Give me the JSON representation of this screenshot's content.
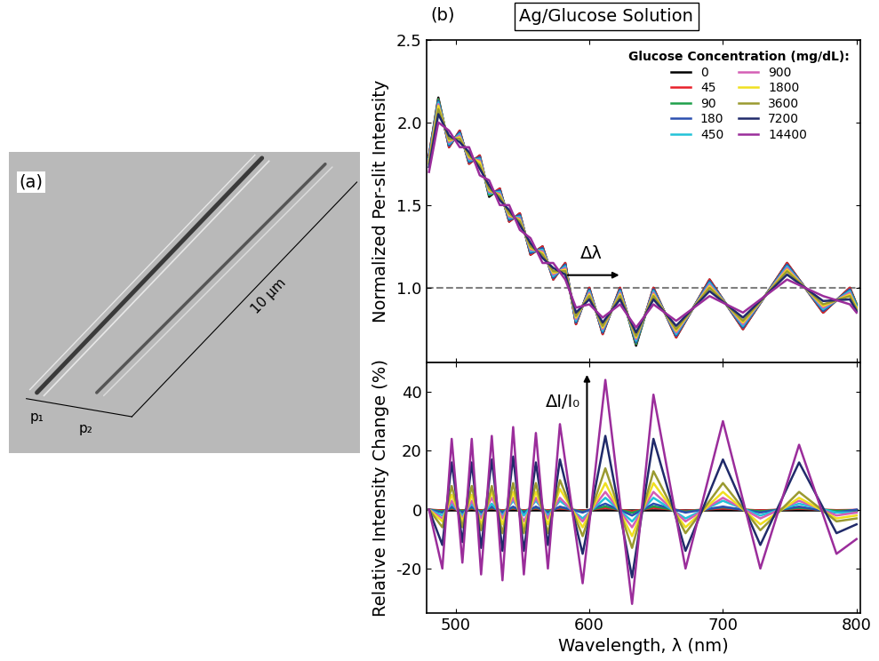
{
  "image_panel": {
    "label": "(a)",
    "annotations": {
      "p1": "p₁",
      "p2": "p₂",
      "length": "10 µm"
    }
  },
  "chart_data": [
    {
      "type": "line",
      "panel_label": "(b)",
      "title": "Ag/Glucose Solution",
      "ylabel": "Normalized Per-slit Intensity",
      "x": [
        480,
        487,
        495,
        503,
        510,
        518,
        525,
        533,
        540,
        548,
        556,
        565,
        573,
        582,
        590,
        600,
        610,
        623,
        635,
        648,
        665,
        690,
        715,
        748,
        775,
        795,
        800
      ],
      "xlim": [
        478,
        803
      ],
      "xticks": [
        500,
        600,
        700,
        800
      ],
      "ylim": [
        0.55,
        2.5
      ],
      "yticks": [
        {
          "value": 1,
          "label": "1.0"
        },
        {
          "value": 1.5,
          "label": "1.5"
        },
        {
          "value": 2,
          "label": "2.0"
        },
        {
          "value": 2.5,
          "label": "2.5"
        }
      ],
      "tick_labels": "y",
      "legend": "upper right",
      "legend_title": "Glucose Concentration (mg/dL):",
      "reference_value": 1,
      "annotation": "Δλ",
      "series": [
        {
          "name": "0",
          "color": "#000000",
          "values": [
            1.8,
            2.15,
            1.85,
            1.95,
            1.75,
            1.8,
            1.55,
            1.6,
            1.4,
            1.45,
            1.2,
            1.25,
            1.05,
            1.15,
            0.78,
            1.0,
            0.72,
            1.0,
            0.65,
            1.0,
            0.7,
            1.05,
            0.75,
            1.15,
            0.85,
            1.0,
            0.9
          ]
        },
        {
          "name": "45",
          "color": "#e8202a",
          "values": [
            1.8,
            2.14,
            1.85,
            1.95,
            1.75,
            1.8,
            1.56,
            1.6,
            1.4,
            1.45,
            1.2,
            1.25,
            1.05,
            1.15,
            0.78,
            1.0,
            0.72,
            1.0,
            0.66,
            1.0,
            0.7,
            1.05,
            0.75,
            1.15,
            0.85,
            1.0,
            0.9
          ]
        },
        {
          "name": "90",
          "color": "#1fa04a",
          "values": [
            1.79,
            2.14,
            1.86,
            1.94,
            1.76,
            1.79,
            1.56,
            1.59,
            1.41,
            1.44,
            1.21,
            1.24,
            1.06,
            1.14,
            0.79,
            0.99,
            0.73,
            0.99,
            0.66,
            0.99,
            0.71,
            1.04,
            0.76,
            1.14,
            0.86,
            0.99,
            0.9
          ]
        },
        {
          "name": "180",
          "color": "#2b4fb0",
          "values": [
            1.79,
            2.13,
            1.86,
            1.94,
            1.76,
            1.79,
            1.57,
            1.59,
            1.41,
            1.44,
            1.21,
            1.24,
            1.06,
            1.14,
            0.79,
            0.99,
            0.73,
            0.99,
            0.67,
            0.99,
            0.71,
            1.04,
            0.76,
            1.14,
            0.86,
            0.99,
            0.89
          ]
        },
        {
          "name": "450",
          "color": "#22c3d8",
          "values": [
            1.78,
            2.12,
            1.87,
            1.93,
            1.77,
            1.78,
            1.57,
            1.58,
            1.42,
            1.43,
            1.22,
            1.23,
            1.07,
            1.13,
            0.8,
            0.98,
            0.74,
            0.98,
            0.68,
            0.98,
            0.72,
            1.03,
            0.77,
            1.13,
            0.87,
            0.98,
            0.89
          ]
        },
        {
          "name": "900",
          "color": "#d45fb5",
          "values": [
            1.77,
            2.11,
            1.88,
            1.92,
            1.78,
            1.77,
            1.58,
            1.57,
            1.43,
            1.42,
            1.23,
            1.22,
            1.08,
            1.12,
            0.81,
            0.97,
            0.75,
            0.97,
            0.69,
            0.97,
            0.73,
            1.02,
            0.78,
            1.12,
            0.88,
            0.97,
            0.88
          ]
        },
        {
          "name": "1800",
          "color": "#f0e020",
          "values": [
            1.76,
            2.1,
            1.89,
            1.91,
            1.79,
            1.76,
            1.59,
            1.56,
            1.44,
            1.41,
            1.24,
            1.21,
            1.09,
            1.11,
            0.82,
            0.96,
            0.76,
            0.96,
            0.7,
            0.96,
            0.74,
            1.01,
            0.79,
            1.11,
            0.89,
            0.96,
            0.88
          ]
        },
        {
          "name": "3600",
          "color": "#9a9a30",
          "values": [
            1.75,
            2.08,
            1.9,
            1.9,
            1.8,
            1.74,
            1.6,
            1.55,
            1.45,
            1.4,
            1.25,
            1.2,
            1.1,
            1.1,
            0.83,
            0.95,
            0.77,
            0.95,
            0.71,
            0.95,
            0.75,
            1.0,
            0.8,
            1.1,
            0.9,
            0.95,
            0.87
          ]
        },
        {
          "name": "7200",
          "color": "#202a6a",
          "values": [
            1.73,
            2.05,
            1.92,
            1.88,
            1.82,
            1.72,
            1.62,
            1.53,
            1.47,
            1.38,
            1.27,
            1.18,
            1.12,
            1.08,
            0.85,
            0.93,
            0.79,
            0.93,
            0.73,
            0.93,
            0.77,
            0.98,
            0.82,
            1.08,
            0.92,
            0.93,
            0.86
          ]
        },
        {
          "name": "14400",
          "color": "#9b2d9b",
          "values": [
            1.7,
            2.0,
            1.95,
            1.85,
            1.85,
            1.68,
            1.65,
            1.5,
            1.5,
            1.35,
            1.3,
            1.15,
            1.15,
            1.05,
            0.88,
            0.9,
            0.82,
            0.9,
            0.76,
            0.9,
            0.8,
            0.95,
            0.85,
            1.05,
            0.95,
            0.9,
            0.85
          ]
        }
      ]
    },
    {
      "type": "line",
      "xlabel": "Wavelength, λ (nm)",
      "ylabel": "Relative Intensity Change (%)",
      "x": [
        480,
        490,
        497,
        505,
        512,
        519,
        527,
        535,
        543,
        551,
        560,
        569,
        578,
        595,
        612,
        632,
        648,
        672,
        700,
        728,
        757,
        785,
        800
      ],
      "xlim": [
        478,
        803
      ],
      "xticks": [
        500,
        600,
        700,
        800
      ],
      "ylim": [
        -35,
        50
      ],
      "yticks": [
        -20,
        0,
        20,
        40
      ],
      "annotation": "ΔI/I₀",
      "series": [
        {
          "name": "0",
          "color": "#000000",
          "values": [
            0,
            0,
            0,
            0,
            0,
            0,
            0,
            0,
            0,
            0,
            0,
            0,
            0,
            0,
            0,
            0,
            0,
            0,
            0,
            0,
            0,
            0,
            0
          ]
        },
        {
          "name": "45",
          "color": "#e8202a",
          "values": [
            0,
            -0.3,
            0.3,
            -0.3,
            0.3,
            -0.3,
            0.4,
            -0.3,
            0.4,
            -0.3,
            0.4,
            -0.3,
            0.4,
            -0.4,
            0.6,
            -0.6,
            0.6,
            -0.4,
            0.4,
            -0.3,
            0.3,
            -0.2,
            -0.1
          ]
        },
        {
          "name": "90",
          "color": "#1fa04a",
          "values": [
            0,
            -0.6,
            0.6,
            -0.5,
            0.6,
            -0.6,
            0.7,
            -0.6,
            0.7,
            -0.6,
            0.7,
            -0.6,
            0.8,
            -0.7,
            1.1,
            -1.1,
            1.1,
            -0.7,
            0.8,
            -0.6,
            0.6,
            -0.4,
            -0.2
          ]
        },
        {
          "name": "180",
          "color": "#2b4fb0",
          "values": [
            0,
            -1,
            1,
            -1,
            1,
            -1,
            1,
            -1,
            1,
            -1,
            1,
            -1,
            1,
            -1,
            2,
            -2,
            2,
            -1,
            1,
            -1,
            1,
            -1,
            0
          ]
        },
        {
          "name": "450",
          "color": "#22c3d8",
          "values": [
            0,
            -2,
            2,
            -2,
            2,
            -2,
            2,
            -2,
            3,
            -2,
            3,
            -2,
            3,
            -3,
            4,
            -4,
            4,
            -3,
            3,
            -2,
            2,
            -1,
            -1
          ]
        },
        {
          "name": "900",
          "color": "#d45fb5",
          "values": [
            0,
            -3,
            3,
            -3,
            3,
            -3,
            4,
            -3,
            4,
            -4,
            4,
            -3,
            4,
            -4,
            6,
            -6,
            6,
            -4,
            4,
            -3,
            3,
            -2,
            -1
          ]
        },
        {
          "name": "1800",
          "color": "#f0e020",
          "values": [
            0,
            -4,
            5,
            -4,
            5,
            -5,
            6,
            -5,
            6,
            -6,
            6,
            -5,
            7,
            -6,
            9,
            -9,
            9,
            -6,
            6,
            -5,
            4,
            -3,
            -2
          ]
        },
        {
          "name": "3600",
          "color": "#9a9a30",
          "values": [
            0,
            -6,
            8,
            -6,
            8,
            -7,
            8,
            -8,
            9,
            -8,
            9,
            -8,
            10,
            -9,
            14,
            -13,
            13,
            -8,
            9,
            -7,
            6,
            -4,
            -3
          ]
        },
        {
          "name": "7200",
          "color": "#202a6a",
          "values": [
            0,
            -12,
            16,
            -11,
            16,
            -13,
            17,
            -14,
            18,
            -14,
            16,
            -12,
            17,
            -15,
            25,
            -23,
            24,
            -14,
            17,
            -12,
            16,
            -8,
            -5
          ]
        },
        {
          "name": "14400",
          "color": "#9b2d9b",
          "values": [
            0,
            -20,
            24,
            -18,
            24,
            -22,
            25,
            -24,
            28,
            -22,
            26,
            -20,
            29,
            -25,
            44,
            -32,
            39,
            -20,
            30,
            -20,
            22,
            -15,
            -10
          ]
        }
      ]
    }
  ]
}
